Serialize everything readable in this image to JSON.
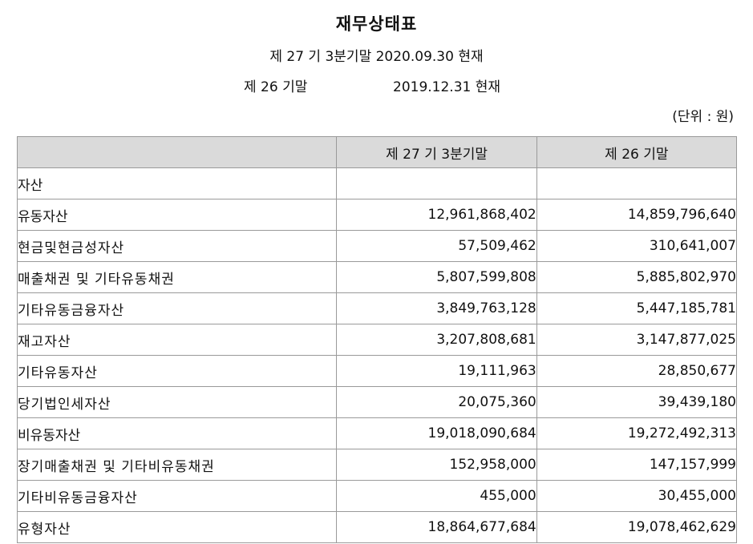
{
  "header": {
    "title": "재무상태표",
    "period_current": "제 27 기 3분기말 2020.09.30 현재",
    "period_prior_label": "제 26 기말",
    "period_prior_date": "2019.12.31 현재",
    "unit": "(단위 : 원)"
  },
  "table": {
    "columns": [
      "",
      "제 27 기 3분기말",
      "제 26 기말"
    ],
    "rows": [
      {
        "label": "자산",
        "level": 0,
        "current": "",
        "prior": ""
      },
      {
        "label": "유동자산",
        "level": 1,
        "current": "12,961,868,402",
        "prior": "14,859,796,640"
      },
      {
        "label": "현금및현금성자산",
        "level": 2,
        "current": "57,509,462",
        "prior": "310,641,007"
      },
      {
        "label": "매출채권 및 기타유동채권",
        "level": 2,
        "current": "5,807,599,808",
        "prior": "5,885,802,970"
      },
      {
        "label": "기타유동금융자산",
        "level": 2,
        "current": "3,849,763,128",
        "prior": "5,447,185,781"
      },
      {
        "label": "재고자산",
        "level": 2,
        "current": "3,207,808,681",
        "prior": "3,147,877,025"
      },
      {
        "label": "기타유동자산",
        "level": 2,
        "current": "19,111,963",
        "prior": "28,850,677"
      },
      {
        "label": "당기법인세자산",
        "level": 2,
        "current": "20,075,360",
        "prior": "39,439,180"
      },
      {
        "label": "비유동자산",
        "level": 1,
        "current": "19,018,090,684",
        "prior": "19,272,492,313"
      },
      {
        "label": "장기매출채권 및 기타비유동채권",
        "level": 2,
        "current": "152,958,000",
        "prior": "147,157,999"
      },
      {
        "label": "기타비유동금융자산",
        "level": 2,
        "current": "455,000",
        "prior": "30,455,000"
      },
      {
        "label": "유형자산",
        "level": 2,
        "current": "18,864,677,684",
        "prior": "19,078,462,629"
      }
    ]
  }
}
